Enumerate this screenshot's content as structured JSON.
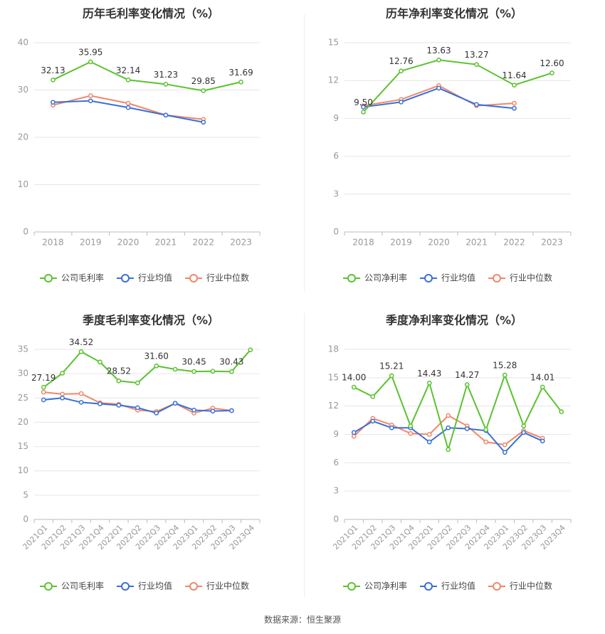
{
  "source": "数据来源：恒生聚源",
  "colors": {
    "company": "#5bc22f",
    "avg": "#3a6fd8",
    "median": "#f0876a",
    "grid": "#e6e6e6",
    "axis": "#999999",
    "text": "#333333"
  },
  "chart_data": [
    {
      "type": "line",
      "title": "历年毛利率变化情况（%）",
      "categories": [
        "2018",
        "2019",
        "2020",
        "2021",
        "2022",
        "2023"
      ],
      "yticks": [
        0,
        10,
        20,
        30,
        40
      ],
      "ylim": [
        0,
        40
      ],
      "rotate_x": false,
      "series": [
        {
          "name": "公司毛利率",
          "color": "#5bc22f",
          "values": [
            32.13,
            35.95,
            32.14,
            31.23,
            29.85,
            31.69
          ],
          "labels": [
            "32.13",
            "35.95",
            "32.14",
            "31.23",
            "29.85",
            "31.69"
          ],
          "label_idx": [
            0,
            1,
            2,
            3,
            4,
            5
          ]
        },
        {
          "name": "行业均值",
          "color": "#3a6fd8",
          "values": [
            27.4,
            27.7,
            26.3,
            24.7,
            23.2,
            null
          ]
        },
        {
          "name": "行业中位数",
          "color": "#f0876a",
          "values": [
            26.8,
            28.8,
            27.2,
            24.7,
            23.8,
            null
          ]
        }
      ]
    },
    {
      "type": "line",
      "title": "历年净利率变化情况（%）",
      "categories": [
        "2018",
        "2019",
        "2020",
        "2021",
        "2022",
        "2023"
      ],
      "yticks": [
        0,
        3,
        6,
        9,
        12,
        15
      ],
      "ylim": [
        0,
        15
      ],
      "rotate_x": false,
      "series": [
        {
          "name": "公司净利率",
          "color": "#5bc22f",
          "values": [
            9.5,
            12.76,
            13.63,
            13.27,
            11.64,
            12.6
          ],
          "labels": [
            "9.50",
            "12.76",
            "13.63",
            "13.27",
            "11.64",
            "12.60"
          ],
          "label_idx": [
            0,
            1,
            2,
            3,
            4,
            5
          ]
        },
        {
          "name": "行业均值",
          "color": "#3a6fd8",
          "values": [
            9.9,
            10.3,
            11.4,
            10.1,
            9.8,
            null
          ]
        },
        {
          "name": "行业中位数",
          "color": "#f0876a",
          "values": [
            10.0,
            10.5,
            11.6,
            10.0,
            10.2,
            null
          ]
        }
      ]
    },
    {
      "type": "line",
      "title": "季度毛利率变化情况（%）",
      "categories": [
        "2021Q1",
        "2021Q2",
        "2021Q3",
        "2021Q4",
        "2022Q1",
        "2022Q2",
        "2022Q3",
        "2022Q4",
        "2023Q1",
        "2023Q2",
        "2023Q3",
        "2023Q4"
      ],
      "yticks": [
        0,
        5,
        10,
        15,
        20,
        25,
        30,
        35
      ],
      "ylim": [
        0,
        35
      ],
      "rotate_x": true,
      "series": [
        {
          "name": "公司毛利率",
          "color": "#5bc22f",
          "values": [
            27.19,
            30.1,
            34.52,
            32.4,
            28.52,
            28.1,
            31.6,
            30.9,
            30.45,
            30.5,
            30.43,
            34.9
          ],
          "labels": [
            "27.19",
            "34.52",
            "28.52",
            "31.60",
            "30.45",
            "30.43"
          ],
          "label_idx": [
            0,
            2,
            4,
            6,
            8,
            10
          ]
        },
        {
          "name": "行业均值",
          "color": "#3a6fd8",
          "values": [
            24.6,
            25.0,
            24.1,
            23.8,
            23.5,
            23.0,
            21.9,
            23.9,
            22.5,
            22.3,
            22.4,
            null
          ]
        },
        {
          "name": "行业中位数",
          "color": "#f0876a",
          "values": [
            26.2,
            25.8,
            25.9,
            24.0,
            23.7,
            22.5,
            22.2,
            23.9,
            21.9,
            22.9,
            22.4,
            null
          ]
        }
      ]
    },
    {
      "type": "line",
      "title": "季度净利率变化情况（%）",
      "categories": [
        "2021Q1",
        "2021Q2",
        "2021Q3",
        "2021Q4",
        "2022Q1",
        "2022Q2",
        "2022Q3",
        "2022Q4",
        "2023Q1",
        "2023Q2",
        "2023Q3",
        "2023Q4"
      ],
      "yticks": [
        0,
        3,
        6,
        9,
        12,
        15,
        18
      ],
      "ylim": [
        0,
        18
      ],
      "rotate_x": true,
      "series": [
        {
          "name": "公司净利率",
          "color": "#5bc22f",
          "values": [
            14.0,
            13.0,
            15.21,
            9.9,
            14.43,
            7.4,
            14.27,
            9.5,
            15.28,
            9.9,
            14.01,
            11.4
          ],
          "labels": [
            "14.00",
            "15.21",
            "14.43",
            "14.27",
            "15.28",
            "14.01"
          ],
          "label_idx": [
            0,
            2,
            4,
            6,
            8,
            10
          ]
        },
        {
          "name": "行业均值",
          "color": "#3a6fd8",
          "values": [
            9.2,
            10.4,
            9.7,
            9.7,
            8.2,
            9.7,
            9.6,
            9.4,
            7.1,
            9.2,
            8.3,
            null
          ]
        },
        {
          "name": "行业中位数",
          "color": "#f0876a",
          "values": [
            8.8,
            10.7,
            10.0,
            9.1,
            9.0,
            11.0,
            9.9,
            8.2,
            7.9,
            9.4,
            8.6,
            null
          ]
        }
      ]
    }
  ]
}
